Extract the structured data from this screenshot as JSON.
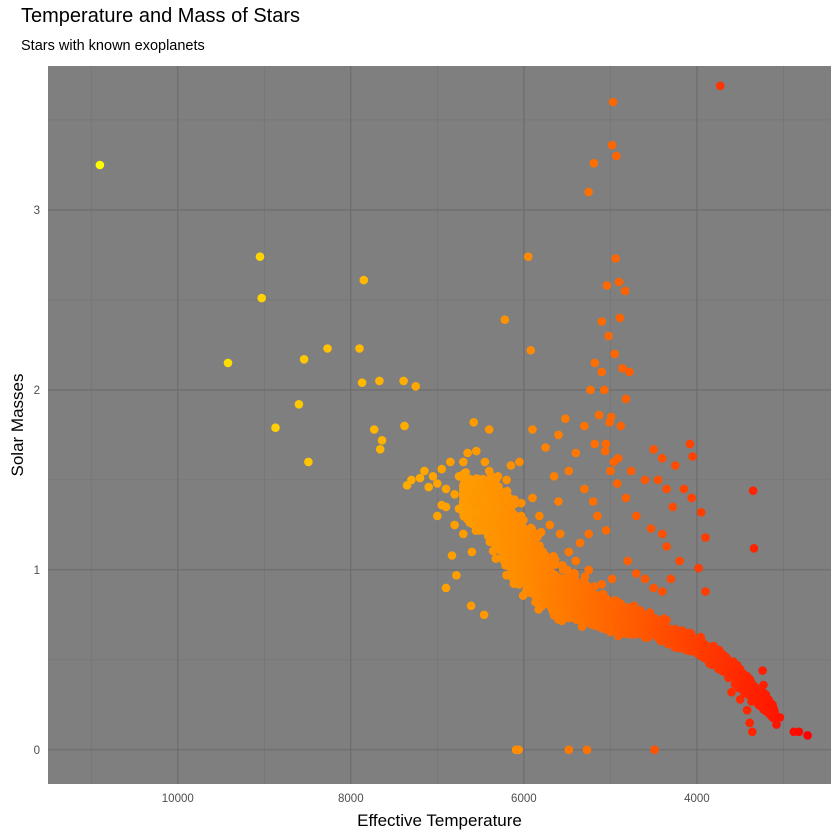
{
  "chart_data": {
    "type": "scatter",
    "title": "Temperature and Mass of Stars",
    "subtitle": "Stars with known exoplanets",
    "xlabel": "Effective Temperature",
    "ylabel": "Solar Masses",
    "x_reversed": true,
    "xlim": [
      11500,
      2450
    ],
    "ylim": [
      -0.19,
      3.8
    ],
    "x_ticks": [
      10000,
      8000,
      6000,
      4000
    ],
    "x_tick_labels": [
      "10000",
      "8000",
      "6000",
      "4000"
    ],
    "y_ticks": [
      0,
      1,
      2,
      3
    ],
    "y_tick_labels": [
      "0",
      "1",
      "2",
      "3"
    ],
    "grid": true,
    "background": "#7f7f7f",
    "grid_major_color": "#6b6b6b",
    "grid_minor_color": "#737373",
    "color_scale": {
      "low": "#ff0000",
      "mid": "#ff8c00",
      "high": "#ffff00",
      "by": "Effective Temperature"
    },
    "points": [
      [
        10900,
        3.25
      ],
      [
        9050,
        2.74
      ],
      [
        9030,
        2.51
      ],
      [
        9420,
        2.15
      ],
      [
        8870,
        1.79
      ],
      [
        8600,
        1.92
      ],
      [
        8540,
        2.17
      ],
      [
        8490,
        1.6
      ],
      [
        8270,
        2.23
      ],
      [
        7900,
        2.23
      ],
      [
        7870,
        2.04
      ],
      [
        7850,
        2.61
      ],
      [
        7730,
        1.78
      ],
      [
        7660,
        1.67
      ],
      [
        7640,
        1.72
      ],
      [
        7670,
        2.05
      ],
      [
        7390,
        2.05
      ],
      [
        7250,
        2.02
      ],
      [
        7380,
        1.8
      ],
      [
        6900,
        0.9
      ],
      [
        6780,
        0.97
      ],
      [
        6830,
        1.08
      ],
      [
        6950,
        1.36
      ],
      [
        6580,
        1.82
      ],
      [
        6400,
        1.78
      ],
      [
        6610,
        0.8
      ],
      [
        6460,
        0.75
      ],
      [
        6220,
        2.39
      ],
      [
        5950,
        2.74
      ],
      [
        5920,
        2.22
      ],
      [
        6090,
        0.0
      ],
      [
        6060,
        0.0
      ],
      [
        5480,
        0.0
      ],
      [
        5270,
        0.0
      ],
      [
        4490,
        0.0
      ],
      [
        4970,
        3.6
      ],
      [
        4980,
        3.36
      ],
      [
        4930,
        3.3
      ],
      [
        5190,
        3.26
      ],
      [
        5250,
        3.1
      ],
      [
        4940,
        2.73
      ],
      [
        5040,
        2.58
      ],
      [
        4900,
        2.6
      ],
      [
        4830,
        2.55
      ],
      [
        3730,
        3.69
      ],
      [
        3350,
        1.44
      ],
      [
        3340,
        1.12
      ],
      [
        3580,
        0.49
      ],
      [
        3900,
        0.88
      ],
      [
        3240,
        0.44
      ],
      [
        3040,
        0.18
      ],
      [
        3080,
        0.14
      ],
      [
        3190,
        0.21
      ],
      [
        3230,
        0.36
      ],
      [
        2880,
        0.1
      ],
      [
        2820,
        0.1
      ],
      [
        2720,
        0.08
      ],
      [
        3360,
        0.1
      ],
      [
        3600,
        0.32
      ],
      [
        3500,
        0.28
      ],
      [
        3420,
        0.22
      ],
      [
        3390,
        0.15
      ],
      [
        3260,
        0.26
      ],
      [
        4500,
        1.67
      ],
      [
        4400,
        1.62
      ],
      [
        4250,
        1.58
      ],
      [
        4400,
        1.2
      ],
      [
        4150,
        1.45
      ],
      [
        4080,
        1.7
      ],
      [
        4050,
        1.63
      ],
      [
        4200,
        1.05
      ],
      [
        3980,
        1.01
      ],
      [
        3950,
        1.32
      ],
      [
        3900,
        1.18
      ],
      [
        4060,
        1.4
      ],
      [
        4300,
        0.95
      ],
      [
        4600,
        1.5
      ],
      [
        4350,
        1.45
      ],
      [
        4450,
        1.5
      ],
      [
        4280,
        1.35
      ],
      [
        4530,
        1.23
      ],
      [
        4350,
        1.13
      ],
      [
        5100,
        2.38
      ],
      [
        5020,
        2.3
      ],
      [
        4890,
        2.4
      ],
      [
        5180,
        2.15
      ],
      [
        5100,
        2.1
      ],
      [
        4950,
        2.2
      ],
      [
        4860,
        2.12
      ],
      [
        4780,
        2.1
      ],
      [
        5230,
        2.0
      ],
      [
        5070,
        2.0
      ],
      [
        4820,
        1.95
      ],
      [
        5130,
        1.86
      ],
      [
        5010,
        1.82
      ],
      [
        4880,
        1.8
      ],
      [
        5300,
        1.8
      ],
      [
        5180,
        1.7
      ],
      [
        5060,
        1.66
      ],
      [
        4960,
        1.6
      ],
      [
        5520,
        1.84
      ],
      [
        5600,
        1.75
      ],
      [
        5400,
        1.65
      ],
      [
        5900,
        1.78
      ],
      [
        5750,
        1.68
      ],
      [
        5480,
        1.55
      ],
      [
        5650,
        1.52
      ],
      [
        5600,
        1.38
      ],
      [
        5900,
        1.4
      ],
      [
        5300,
        1.45
      ],
      [
        5200,
        1.38
      ],
      [
        5150,
        1.3
      ],
      [
        5050,
        1.22
      ],
      [
        5250,
        1.2
      ],
      [
        5350,
        1.15
      ],
      [
        5480,
        1.1
      ],
      [
        5580,
        1.2
      ],
      [
        5700,
        1.25
      ],
      [
        5820,
        1.3
      ],
      [
        5780,
        1.1
      ],
      [
        5650,
        1.03
      ],
      [
        5500,
        1.0
      ],
      [
        5400,
        1.05
      ],
      [
        5250,
        1.0
      ],
      [
        5100,
        0.92
      ],
      [
        4980,
        0.95
      ],
      [
        4800,
        1.05
      ],
      [
        4700,
        0.98
      ],
      [
        4600,
        0.95
      ],
      [
        4500,
        0.9
      ],
      [
        4400,
        0.88
      ],
      [
        4700,
        1.3
      ],
      [
        4760,
        1.55
      ],
      [
        4820,
        1.4
      ],
      [
        4920,
        1.48
      ],
      [
        5000,
        1.55
      ],
      [
        5050,
        1.7
      ],
      [
        4990,
        1.85
      ],
      [
        4910,
        1.62
      ],
      [
        6500,
        1.45
      ],
      [
        6600,
        1.5
      ],
      [
        6700,
        1.6
      ],
      [
        6750,
        1.52
      ],
      [
        6800,
        1.42
      ],
      [
        6900,
        1.45
      ],
      [
        7000,
        1.48
      ],
      [
        7050,
        1.52
      ],
      [
        7100,
        1.46
      ],
      [
        7150,
        1.55
      ],
      [
        7200,
        1.51
      ],
      [
        7300,
        1.5
      ],
      [
        7350,
        1.47
      ],
      [
        6950,
        1.56
      ],
      [
        6850,
        1.6
      ],
      [
        6650,
        1.65
      ],
      [
        6550,
        1.66
      ],
      [
        6450,
        1.6
      ],
      [
        6400,
        1.55
      ],
      [
        6300,
        1.52
      ],
      [
        6200,
        1.5
      ],
      [
        6150,
        1.58
      ],
      [
        6050,
        1.6
      ],
      [
        6350,
        1.42
      ],
      [
        6450,
        1.38
      ],
      [
        6550,
        1.32
      ],
      [
        6650,
        1.28
      ],
      [
        6700,
        1.2
      ],
      [
        6600,
        1.1
      ],
      [
        6750,
        1.34
      ],
      [
        6800,
        1.25
      ],
      [
        6900,
        1.35
      ],
      [
        7000,
        1.3
      ]
    ],
    "dense_band": {
      "x_range": [
        6700,
        3100
      ],
      "center_line": [
        [
          6700,
          1.42
        ],
        [
          6300,
          1.28
        ],
        [
          6000,
          1.08
        ],
        [
          5600,
          0.87
        ],
        [
          5000,
          0.75
        ],
        [
          4500,
          0.68
        ],
        [
          4000,
          0.58
        ],
        [
          3600,
          0.45
        ],
        [
          3300,
          0.3
        ],
        [
          3100,
          0.2
        ]
      ],
      "spread": [
        [
          6700,
          0.18
        ],
        [
          6400,
          0.3
        ],
        [
          6100,
          0.35
        ],
        [
          5700,
          0.26
        ],
        [
          5200,
          0.18
        ],
        [
          4600,
          0.1
        ],
        [
          4000,
          0.08
        ],
        [
          3500,
          0.1
        ],
        [
          3100,
          0.08
        ]
      ],
      "count": 3200
    }
  }
}
